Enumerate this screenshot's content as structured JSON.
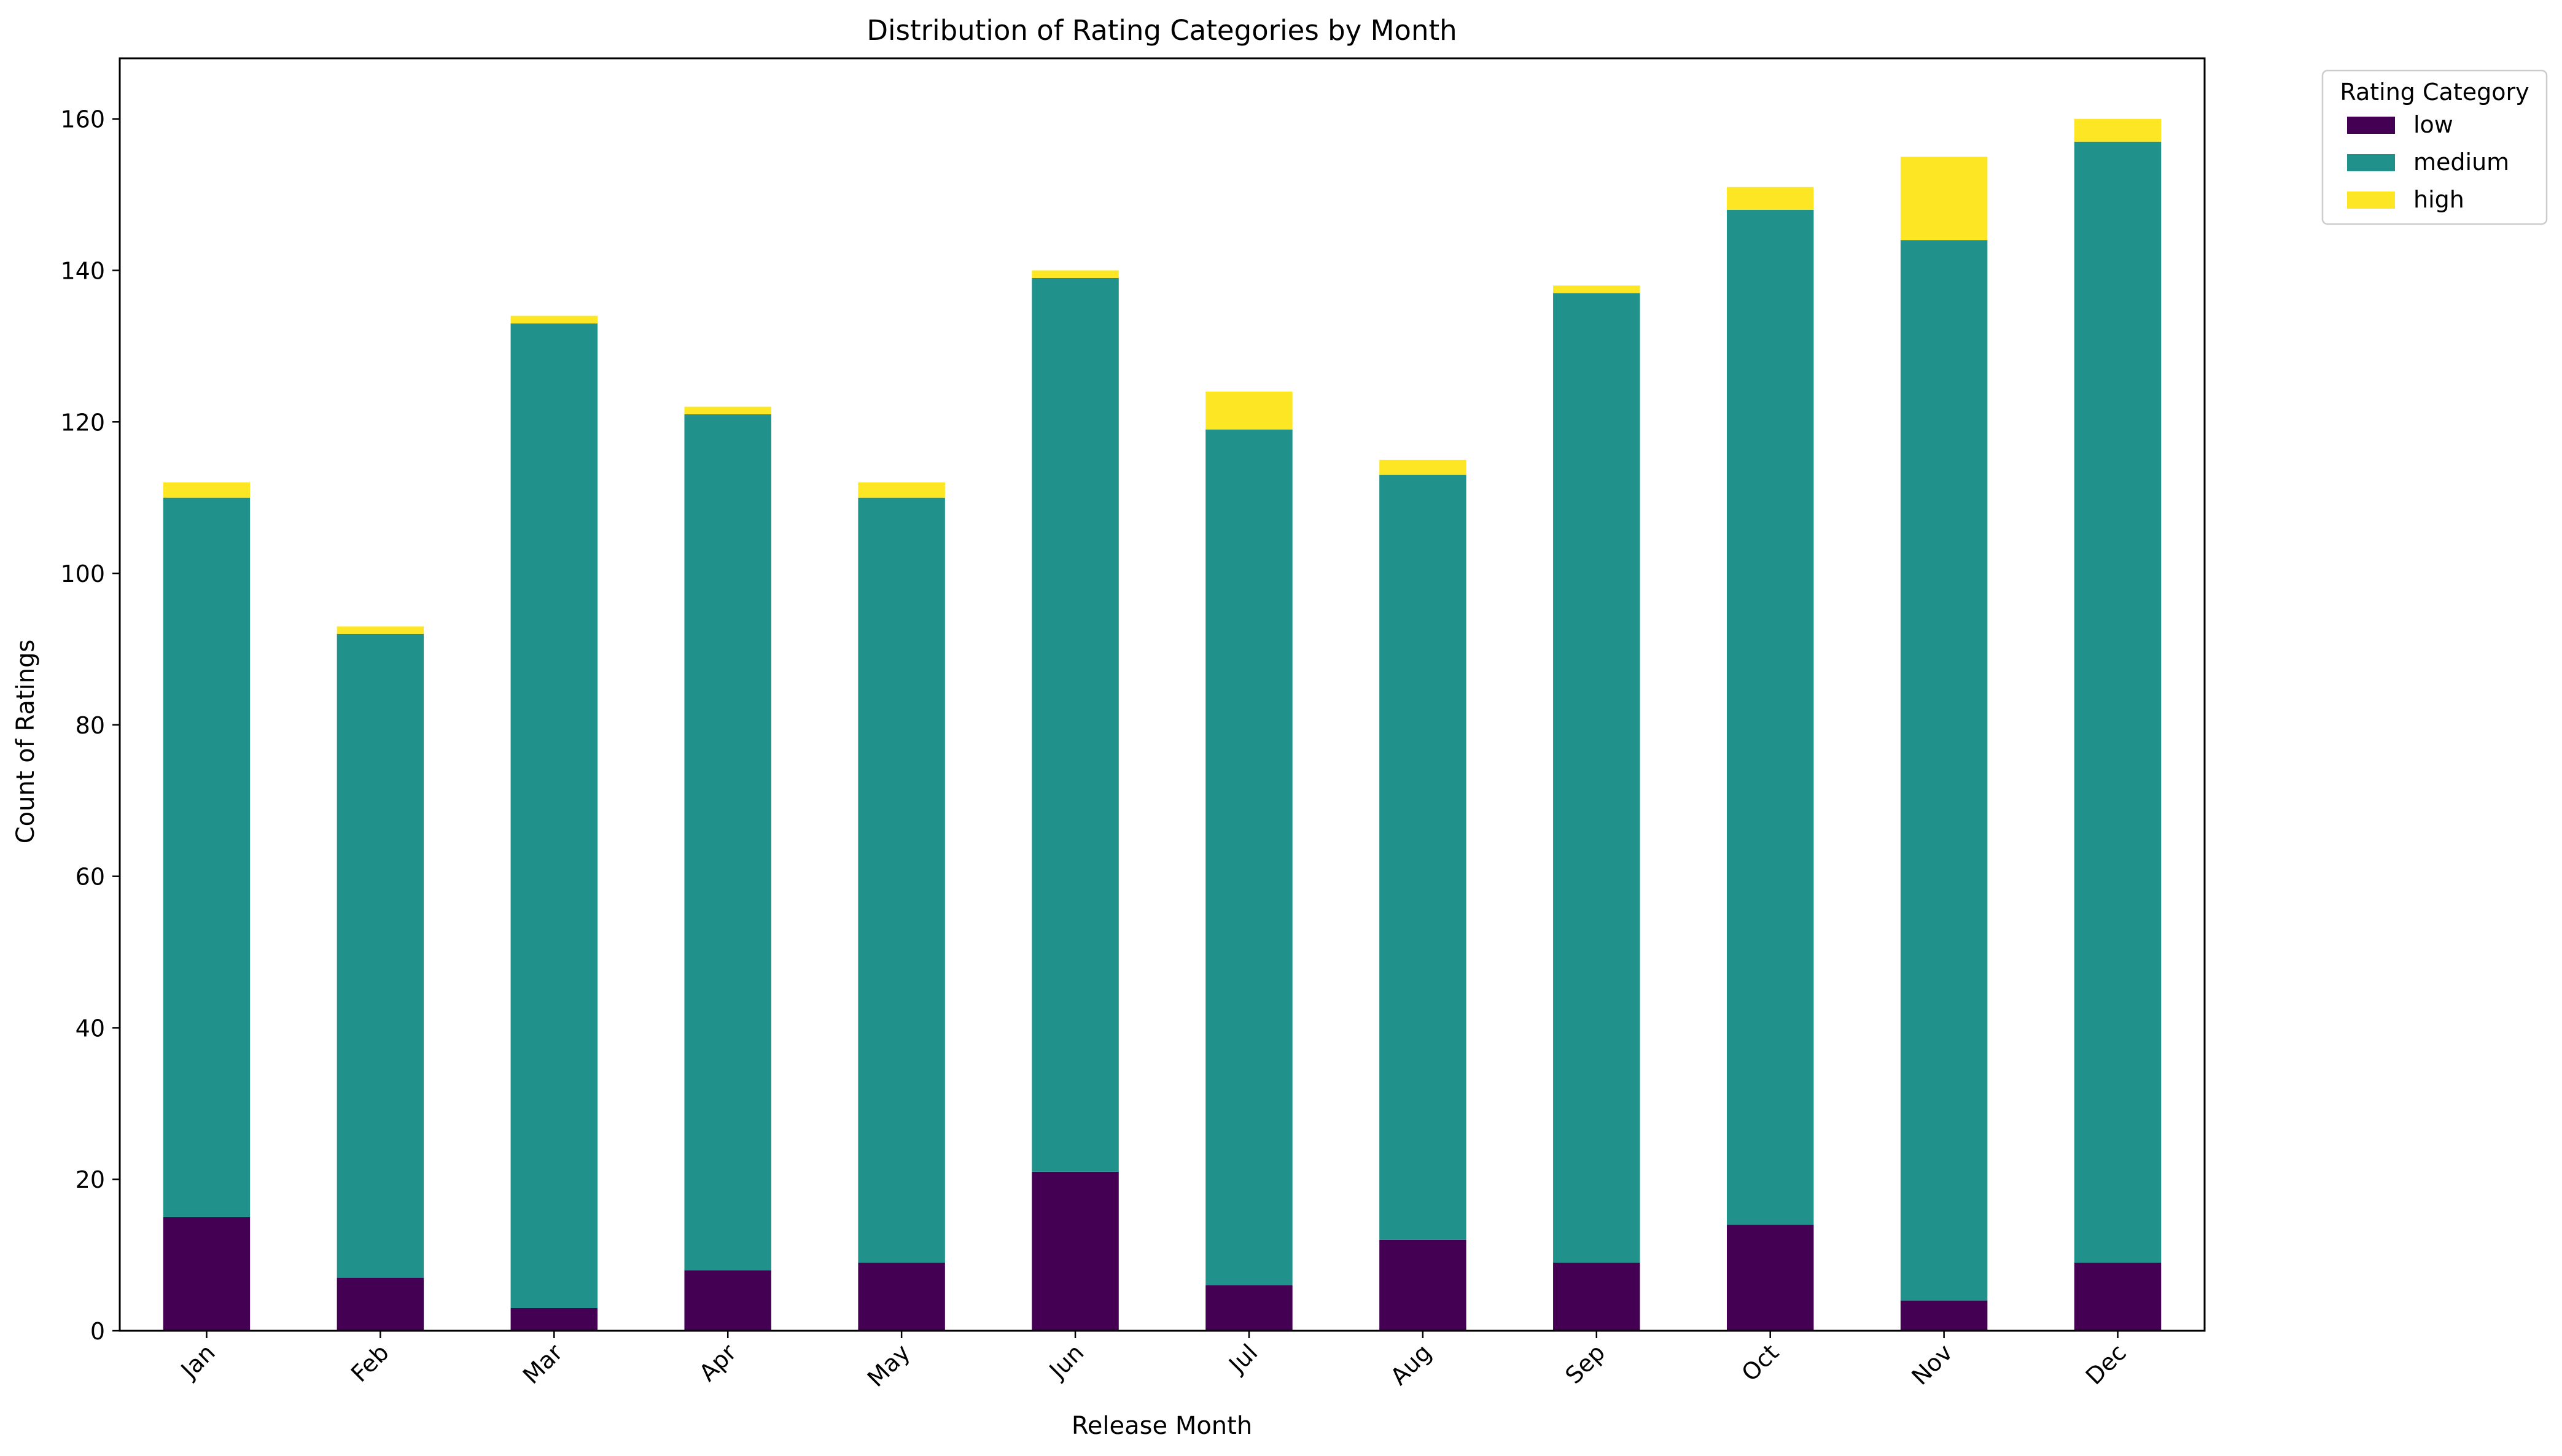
{
  "chart_data": {
    "type": "bar",
    "stacked": true,
    "title": "Distribution of Rating Categories by Month",
    "xlabel": "Release Month",
    "ylabel": "Count of Ratings",
    "categories": [
      "Jan",
      "Feb",
      "Mar",
      "Apr",
      "May",
      "Jun",
      "Jul",
      "Aug",
      "Sep",
      "Oct",
      "Nov",
      "Dec"
    ],
    "series": [
      {
        "name": "low",
        "color": "#440154",
        "values": [
          15,
          7,
          3,
          8,
          9,
          21,
          6,
          12,
          9,
          14,
          4,
          9
        ]
      },
      {
        "name": "medium",
        "color": "#21918c",
        "values": [
          95,
          85,
          130,
          113,
          101,
          118,
          113,
          101,
          128,
          134,
          140,
          148
        ]
      },
      {
        "name": "high",
        "color": "#fde725",
        "values": [
          2,
          1,
          1,
          1,
          2,
          1,
          5,
          2,
          1,
          3,
          11,
          3
        ]
      }
    ],
    "ylim": [
      0,
      168
    ],
    "yticks": [
      0,
      20,
      40,
      60,
      80,
      100,
      120,
      140,
      160
    ],
    "grid": false,
    "legend": {
      "title": "Rating Category",
      "placement": "outside-top-right"
    }
  }
}
